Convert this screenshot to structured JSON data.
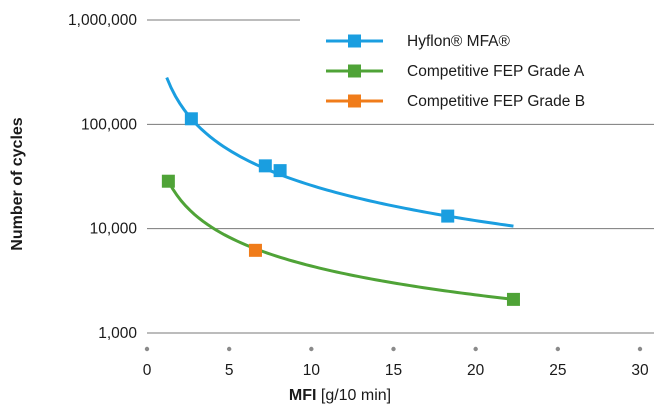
{
  "chart_data": {
    "type": "line",
    "y_scale": "log",
    "ylim": [
      1000,
      1000000
    ],
    "xlim": [
      0,
      30
    ],
    "y_ticks": [
      1000,
      10000,
      100000,
      1000000
    ],
    "y_tick_labels": [
      "1,000",
      "10,000",
      "100,000",
      "1,000,000"
    ],
    "x_ticks": [
      0,
      5,
      10,
      15,
      20,
      25,
      30
    ],
    "x_tick_labels": [
      "0",
      "5",
      "10",
      "15",
      "20",
      "25",
      "30"
    ],
    "ylabel": "Number of cycles",
    "xlabel_bold": "MFI",
    "xlabel_rest": " [g/10 min]",
    "grid": "horizontal",
    "legend_position": "top-right",
    "series": [
      {
        "name": "Hyflon® MFA®",
        "color": "#1a9ee0",
        "curve_x_range": [
          1.2,
          22.3
        ],
        "markers": [
          {
            "x": 2.7,
            "y": 113000,
            "color": "#1a9ee0"
          },
          {
            "x": 7.2,
            "y": 40000,
            "color": "#1a9ee0"
          },
          {
            "x": 8.1,
            "y": 36000,
            "color": "#1a9ee0"
          },
          {
            "x": 18.3,
            "y": 13200,
            "color": "#1a9ee0"
          }
        ]
      },
      {
        "name": "Competitive FEP Grade A",
        "color": "#4fa337",
        "curve_x_range": [
          1.3,
          22.3
        ],
        "markers": [
          {
            "x": 1.3,
            "y": 28500,
            "color": "#4fa337"
          },
          {
            "x": 22.3,
            "y": 2100,
            "color": "#4fa337"
          }
        ]
      },
      {
        "name": "Competitive FEP Grade B",
        "color": "#f07c1a",
        "markers": [
          {
            "x": 6.6,
            "y": 6200,
            "color": "#f07c1a"
          }
        ]
      }
    ]
  }
}
